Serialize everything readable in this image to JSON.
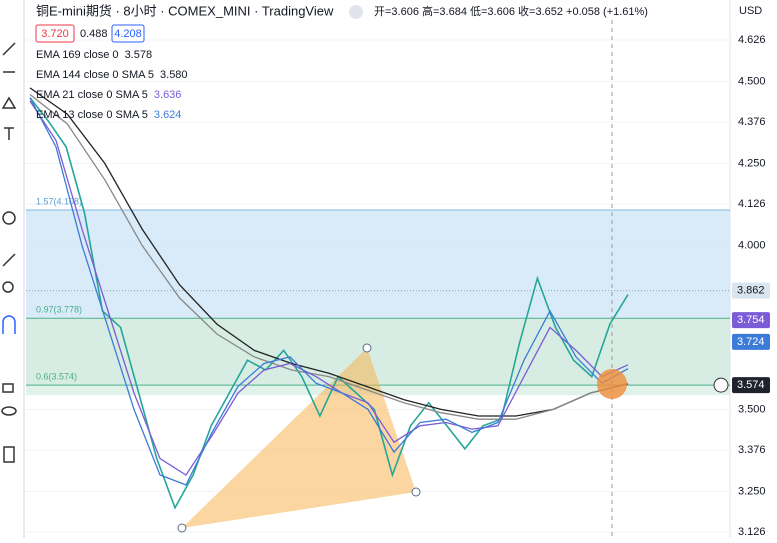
{
  "header": {
    "title": "铜E-mini期货 · 8小时 · COMEX_MINI · TradingView",
    "ohlc": "开=3.606 高=3.684 低=3.606 收=3.652 +0.058 (+1.61%)",
    "inputs": [
      "3.720",
      "0.488",
      "4.208"
    ],
    "currency": "USD",
    "legend": [
      {
        "name": "EMA 169 close 0",
        "value": "3.578"
      },
      {
        "name": "EMA 144 close 0 SMA 5",
        "value": "3.580"
      },
      {
        "name": "EMA 21 close 0 SMA 5",
        "value": "3.636"
      },
      {
        "name": "EMA 13 close 0 SMA 5",
        "value": "3.624"
      }
    ]
  },
  "chart_data": {
    "type": "line",
    "ylim": [
      3.108,
      4.748
    ],
    "yticks": [
      4.626,
      {
        "value": 4.5,
        "label": "4.500"
      },
      4.376,
      {
        "value": 4.25,
        "label": "4.250"
      },
      4.126,
      {
        "value": 4.0,
        "label": "4.000"
      },
      {
        "value": 3.5,
        "label": "3.500"
      },
      3.376,
      {
        "value": 3.25,
        "label": "3.250"
      },
      3.126
    ],
    "grid": true,
    "series": [
      {
        "color": "#26a69a",
        "values": [
          4.45,
          4.38,
          4.3,
          4.1,
          3.8,
          3.75,
          3.55,
          3.35,
          3.2,
          3.3,
          3.45,
          3.55,
          3.65,
          3.62,
          3.68,
          3.6,
          3.48,
          3.6,
          3.55,
          3.5,
          3.3,
          3.45,
          3.52,
          3.45,
          3.38,
          3.45,
          3.47,
          3.7,
          3.9,
          3.75,
          3.65,
          3.6,
          3.76,
          3.85
        ]
      },
      {
        "color": "#222222",
        "values": [
          4.48,
          4.4,
          4.25,
          4.05,
          3.88,
          3.76,
          3.68,
          3.64,
          3.61,
          3.57,
          3.53,
          3.5,
          3.48,
          3.48,
          3.5,
          3.55,
          3.578
        ]
      },
      {
        "color": "#888888",
        "values": [
          4.46,
          4.37,
          4.2,
          4.0,
          3.84,
          3.73,
          3.66,
          3.62,
          3.6,
          3.56,
          3.52,
          3.49,
          3.47,
          3.47,
          3.5,
          3.55,
          3.58
        ]
      },
      {
        "color": "#7b5cd6",
        "values": [
          4.44,
          4.32,
          4.05,
          3.8,
          3.55,
          3.35,
          3.3,
          3.42,
          3.55,
          3.62,
          3.64,
          3.6,
          3.55,
          3.52,
          3.4,
          3.45,
          3.46,
          3.44,
          3.45,
          3.6,
          3.75,
          3.68,
          3.6,
          3.636
        ]
      },
      {
        "color": "#3d7bd9",
        "values": [
          4.45,
          4.3,
          4.0,
          3.75,
          3.5,
          3.3,
          3.27,
          3.43,
          3.57,
          3.64,
          3.66,
          3.58,
          3.55,
          3.5,
          3.37,
          3.46,
          3.47,
          3.43,
          3.46,
          3.65,
          3.8,
          3.66,
          3.58,
          3.624
        ]
      }
    ],
    "fib": [
      {
        "label": "1.57(4.108)",
        "value": 4.108
      },
      {
        "label": "0.97(3.778)",
        "value": 3.778
      },
      {
        "label": "0.6(3.574)",
        "value": 3.574
      }
    ],
    "price_labels": [
      {
        "value": 3.862,
        "color": "#d8e4ee"
      },
      {
        "value": 3.754,
        "color": "#7b5cd6"
      },
      {
        "value": 3.724,
        "color": "#3d7bd9"
      },
      {
        "value": 3.574,
        "color": "#1e222d"
      }
    ]
  }
}
